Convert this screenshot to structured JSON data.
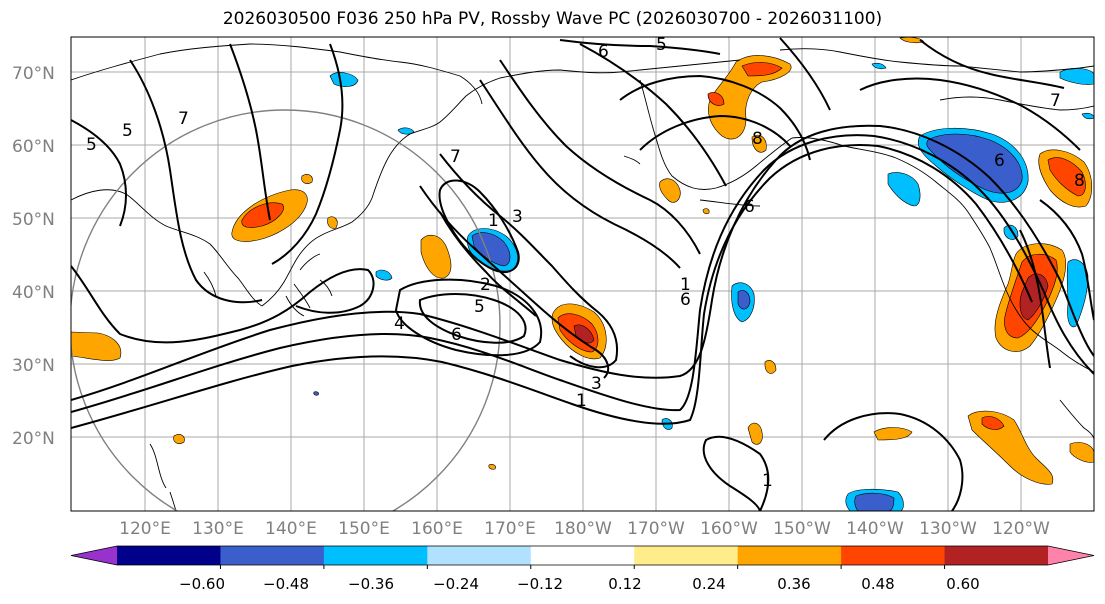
{
  "title": "2026030500 F036 250 hPa PV, Rossby Wave PC (2026030700 - 2026031100)",
  "lat_ticks": [
    "70°N",
    "60°N",
    "50°N",
    "40°N",
    "30°N",
    "20°N"
  ],
  "lon_ticks": [
    "120°E",
    "130°E",
    "140°E",
    "150°E",
    "160°E",
    "170°E",
    "180°W",
    "170°W",
    "160°W",
    "150°W",
    "140°W",
    "130°W",
    "120°W"
  ],
  "colorbar": {
    "tick_labels": [
      "−0.60",
      "−0.48",
      "−0.36",
      "−0.24",
      "−0.12",
      "0.12",
      "0.24",
      "0.36",
      "0.48",
      "0.60"
    ],
    "colors": [
      "#9932cc",
      "#00008b",
      "#3a5fcd",
      "#00bfff",
      "#b0e2ff",
      "#ffffff",
      "#ffec8b",
      "#ffa500",
      "#ff4500",
      "#b22222",
      "#ff82ab"
    ]
  },
  "contour_labels": [
    "6",
    "5",
    "7",
    "5",
    "5",
    "1",
    "3",
    "2",
    "5",
    "6",
    "4",
    "3",
    "1",
    "7",
    "6",
    "1",
    "1",
    "6",
    "7",
    "8",
    "8",
    "6"
  ]
}
